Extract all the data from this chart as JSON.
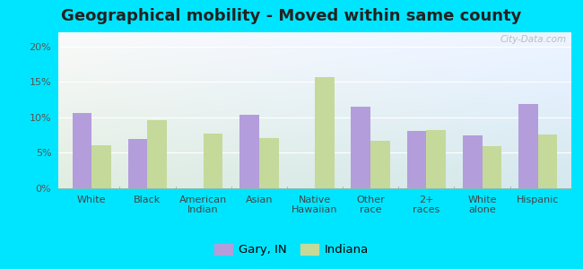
{
  "title": "Geographical mobility - Moved within same county",
  "categories": [
    "White",
    "Black",
    "American\nIndian",
    "Asian",
    "Native\nHawaiian",
    "Other\nrace",
    "2+\nraces",
    "White\nalone",
    "Hispanic"
  ],
  "gary_values": [
    10.6,
    7.0,
    0.0,
    10.4,
    0.0,
    11.5,
    8.1,
    7.5,
    11.9
  ],
  "indiana_values": [
    6.1,
    9.6,
    7.7,
    7.1,
    15.7,
    6.7,
    8.2,
    5.9,
    7.6
  ],
  "gary_color": "#b39ddb",
  "indiana_color": "#c5d99a",
  "bar_width": 0.35,
  "ylim": [
    0,
    22
  ],
  "yticks": [
    0,
    5,
    10,
    15,
    20
  ],
  "yticklabels": [
    "0%",
    "5%",
    "10%",
    "15%",
    "20%"
  ],
  "legend_gary": "Gary, IN",
  "legend_indiana": "Indiana",
  "bg_outer": "#00e5ff",
  "watermark": "City-Data.com",
  "title_fontsize": 13,
  "tick_fontsize": 8,
  "legend_fontsize": 9.5
}
